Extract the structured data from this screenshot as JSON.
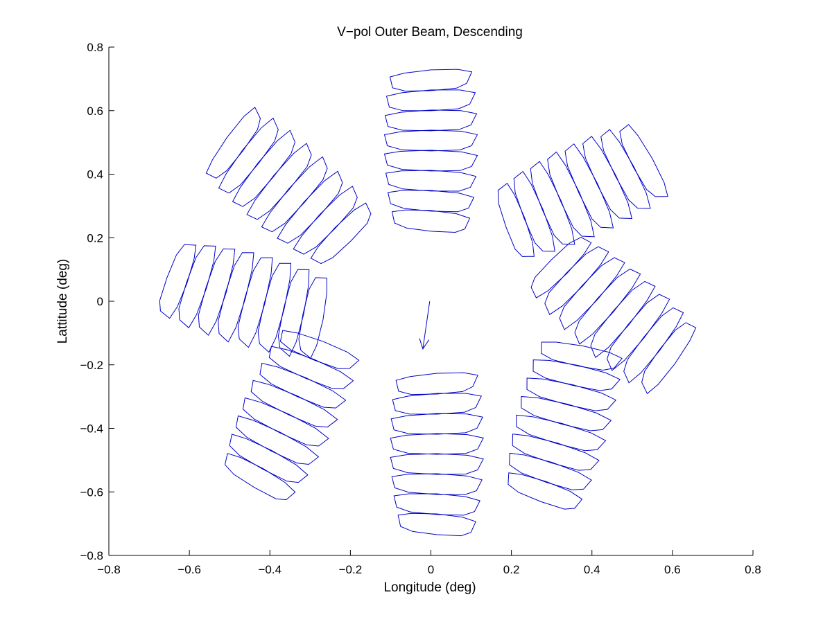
{
  "chart_data": {
    "type": "scatter",
    "title": "V−pol Outer Beam, Descending",
    "xlabel": "Longitude (deg)",
    "ylabel": "Lattitude (deg)",
    "xlim": [
      -0.8,
      0.8
    ],
    "ylim": [
      -0.8,
      0.8
    ],
    "xticks": [
      -0.8,
      -0.6,
      -0.4,
      -0.2,
      0,
      0.2,
      0.4,
      0.6,
      0.8
    ],
    "xtick_labels": [
      "−0.8",
      "−0.6",
      "−0.4",
      "−0.2",
      "0",
      "0.2",
      "0.4",
      "0.6",
      "0.8"
    ],
    "yticks": [
      0.8,
      0.6,
      0.4,
      0.2,
      0,
      -0.2,
      -0.4,
      -0.6,
      -0.8
    ],
    "ytick_labels": [
      "0.8",
      "0.6",
      "0.4",
      "0.2",
      "0",
      "−0.2",
      "−0.4",
      "−0.6",
      "−0.8"
    ],
    "grid": false,
    "series_color": "#0000c8",
    "clusters": [
      {
        "center_x": 0.0,
        "center_y": 0.47,
        "angle_deg": 0,
        "count": 8
      },
      {
        "center_x": 0.365,
        "center_y": 0.34,
        "angle_deg": 65,
        "count": 8
      },
      {
        "center_x": 0.45,
        "center_y": -0.03,
        "angle_deg": 130,
        "count": 8
      },
      {
        "center_x": 0.325,
        "center_y": -0.39,
        "angle_deg": 15,
        "count": 8
      },
      {
        "center_x": 0.015,
        "center_y": -0.485,
        "angle_deg": 0,
        "count": 8
      },
      {
        "center_x": -0.355,
        "center_y": -0.36,
        "angle_deg": 25,
        "count": 8
      },
      {
        "center_x": -0.465,
        "center_y": 0.01,
        "angle_deg": 105,
        "count": 8
      },
      {
        "center_x": -0.35,
        "center_y": 0.35,
        "angle_deg": -50,
        "count": 8
      }
    ],
    "arrow": {
      "from": [
        -0.003,
        0.0
      ],
      "to": [
        -0.02,
        -0.15
      ]
    }
  }
}
